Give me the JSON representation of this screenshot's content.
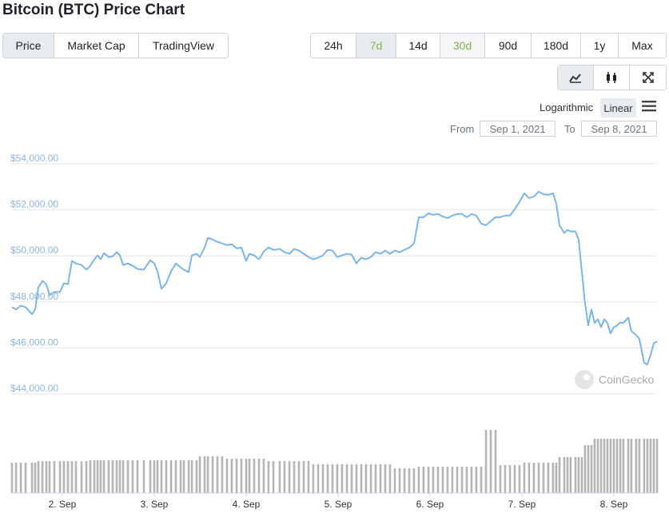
{
  "header": {
    "title": "Bitcoin (BTC) Price Chart"
  },
  "tabs": [
    {
      "label": "Price",
      "selected": true
    },
    {
      "label": "Market Cap",
      "selected": false
    },
    {
      "label": "TradingView",
      "selected": false
    }
  ],
  "ranges": [
    {
      "label": "24h",
      "selected": false
    },
    {
      "label": "7d",
      "selected": true
    },
    {
      "label": "14d",
      "selected": false
    },
    {
      "label": "30d",
      "selected": false,
      "hovered": true
    },
    {
      "label": "90d",
      "selected": false
    },
    {
      "label": "180d",
      "selected": false
    },
    {
      "label": "1y",
      "selected": false
    },
    {
      "label": "Max",
      "selected": false
    }
  ],
  "scale_options": [
    {
      "label": "Logarithmic",
      "selected": false
    },
    {
      "label": "Linear",
      "selected": true
    }
  ],
  "date_range": {
    "from_label": "From",
    "from": "Sep 1, 2021",
    "to_label": "To",
    "to": "Sep 8, 2021"
  },
  "watermark": "CoinGecko",
  "chart_data": {
    "type": "line",
    "color": "#7cb5ec",
    "volume_color": "#b5b5b5",
    "grid": true,
    "xlim": [
      1.452,
      8.47
    ],
    "xticks": [
      {
        "value": 2,
        "label": "2. Sep"
      },
      {
        "value": 3,
        "label": "3. Sep"
      },
      {
        "value": 4,
        "label": "4. Sep"
      },
      {
        "value": 5,
        "label": "5. Sep"
      },
      {
        "value": 6,
        "label": "6. Sep"
      },
      {
        "value": 7,
        "label": "7. Sep"
      },
      {
        "value": 8,
        "label": "8. Sep"
      }
    ],
    "ylim": [
      44000,
      54000
    ],
    "yticks": [
      {
        "value": 44000,
        "label": "$44,000.00"
      },
      {
        "value": 46000,
        "label": "$46,000.00"
      },
      {
        "value": 48000,
        "label": "$48,000.00"
      },
      {
        "value": 50000,
        "label": "$50,000.00"
      },
      {
        "value": 52000,
        "label": "$52,000.00"
      },
      {
        "value": 54000,
        "label": "$54,000.00"
      }
    ],
    "x": [
      1.452,
      1.496,
      1.548,
      1.6,
      1.67,
      1.704,
      1.739,
      1.783,
      1.826,
      1.861,
      1.913,
      1.974,
      2.017,
      2.061,
      2.104,
      2.148,
      2.209,
      2.261,
      2.304,
      2.348,
      2.383,
      2.417,
      2.452,
      2.504,
      2.548,
      2.591,
      2.626,
      2.661,
      2.713,
      2.765,
      2.817,
      2.887,
      2.957,
      3.0,
      3.035,
      3.078,
      3.13,
      3.183,
      3.235,
      3.287,
      3.322,
      3.374,
      3.409,
      3.461,
      3.496,
      3.548,
      3.583,
      3.635,
      3.687,
      3.739,
      3.791,
      3.843,
      3.896,
      3.948,
      4.0,
      4.035,
      4.087,
      4.139,
      4.191,
      4.243,
      4.296,
      4.365,
      4.417,
      4.47,
      4.522,
      4.574,
      4.626,
      4.678,
      4.73,
      4.783,
      4.835,
      4.887,
      4.939,
      4.991,
      5.043,
      5.096,
      5.148,
      5.2,
      5.252,
      5.304,
      5.357,
      5.409,
      5.461,
      5.513,
      5.565,
      5.617,
      5.67,
      5.722,
      5.774,
      5.826,
      5.878,
      5.93,
      5.983,
      6.035,
      6.087,
      6.139,
      6.191,
      6.243,
      6.296,
      6.348,
      6.4,
      6.452,
      6.504,
      6.557,
      6.609,
      6.661,
      6.713,
      6.765,
      6.817,
      6.87,
      6.922,
      6.974,
      7.026,
      7.078,
      7.13,
      7.183,
      7.235,
      7.287,
      7.339,
      7.374,
      7.409,
      7.461,
      7.496,
      7.53,
      7.583,
      7.617,
      7.652,
      7.687,
      7.722,
      7.757,
      7.791,
      7.826,
      7.861,
      7.896,
      7.93,
      7.965,
      8.0,
      8.035,
      8.07,
      8.104,
      8.157,
      8.191,
      8.243,
      8.278,
      8.33,
      8.365,
      8.4,
      8.435,
      8.47
    ],
    "values": [
      47770,
      47670,
      47840,
      47770,
      47460,
      47670,
      48630,
      48910,
      48770,
      48290,
      48430,
      48430,
      48810,
      48770,
      49780,
      49670,
      49600,
      49400,
      49570,
      49850,
      50020,
      49850,
      50120,
      49950,
      49980,
      50160,
      50020,
      49600,
      49670,
      49570,
      49430,
      49400,
      49810,
      49670,
      49330,
      48570,
      48810,
      49330,
      49670,
      49500,
      49400,
      49290,
      50020,
      50090,
      49950,
      50360,
      50780,
      50710,
      50610,
      50540,
      50470,
      50500,
      50330,
      50360,
      49780,
      50090,
      50020,
      49850,
      50190,
      50360,
      50260,
      50300,
      50160,
      50090,
      50300,
      50230,
      50090,
      49950,
      49850,
      49920,
      50020,
      50260,
      50230,
      49950,
      50020,
      50090,
      50050,
      49670,
      49920,
      49850,
      49950,
      50160,
      50090,
      50230,
      50090,
      50230,
      50160,
      50260,
      50360,
      50540,
      51680,
      51680,
      51850,
      51780,
      51820,
      51710,
      51640,
      51750,
      51820,
      51820,
      51680,
      51820,
      51750,
      51400,
      51330,
      51510,
      51680,
      51680,
      51750,
      51750,
      52030,
      52340,
      52720,
      52510,
      52580,
      52790,
      52680,
      52650,
      52720,
      52270,
      51330,
      50990,
      51130,
      51060,
      51060,
      50710,
      49330,
      47940,
      46970,
      47670,
      47080,
      47250,
      46900,
      47250,
      47080,
      46630,
      46900,
      46970,
      47110,
      47080,
      47320,
      46730,
      46560,
      46390,
      45350,
      45280,
      45690,
      46210,
      46280
    ],
    "volumes": [
      38,
      38,
      38,
      38,
      38,
      38,
      40,
      40,
      40,
      40,
      40,
      40,
      40,
      40,
      40,
      40,
      40,
      40,
      41,
      41,
      41,
      41,
      41,
      41,
      41,
      41,
      41,
      41,
      41,
      41,
      41,
      41,
      41,
      41,
      41,
      41,
      41,
      41,
      41,
      41,
      41,
      41,
      41,
      41,
      46,
      46,
      46,
      46,
      46,
      46,
      43,
      43,
      43,
      43,
      43,
      43,
      43,
      43,
      43,
      40,
      40,
      40,
      40,
      40,
      40,
      40,
      40,
      40,
      36,
      36,
      36,
      36,
      36,
      36,
      36,
      36,
      36,
      36,
      36,
      36,
      36,
      36,
      36,
      36,
      36,
      31,
      31,
      31,
      31,
      31,
      33,
      33,
      33,
      33,
      33,
      33,
      33,
      33,
      33,
      33,
      33,
      33,
      33,
      33,
      79,
      79,
      79,
      35,
      35,
      35,
      35,
      35,
      38,
      38,
      38,
      38,
      38,
      38,
      38,
      38,
      45,
      45,
      45,
      45,
      45,
      45,
      45,
      60,
      60,
      60,
      68,
      68,
      68,
      68,
      68,
      68,
      68,
      68,
      68,
      68,
      68,
      68,
      68,
      68,
      68,
      68,
      68,
      68,
      68
    ]
  }
}
